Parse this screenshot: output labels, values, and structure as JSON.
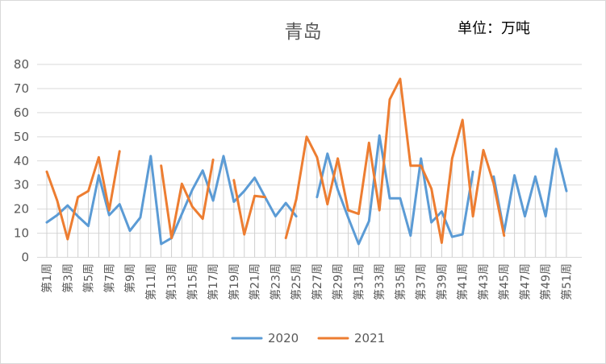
{
  "chart_data": {
    "type": "line",
    "title": "青岛",
    "unit": "单位：万吨",
    "ylim": [
      0,
      80
    ],
    "yticks": [
      0,
      10,
      20,
      30,
      40,
      50,
      60,
      70,
      80
    ],
    "xtick_labels": [
      "第1周",
      "第3周",
      "第5周",
      "第7周",
      "第9周",
      "第11周",
      "第13周",
      "第15周",
      "第17周",
      "第19周",
      "第21周",
      "第23周",
      "第25周",
      "第27周",
      "第29周",
      "第31周",
      "第33周",
      "第35周",
      "第37周",
      "第39周",
      "第41周",
      "第43周",
      "第45周",
      "第47周",
      "第49周",
      "第51周"
    ],
    "drop_lines": true,
    "legend_position": "bottom",
    "series": [
      {
        "name": "2020",
        "color": "#5b9bd5",
        "values": [
          14.5,
          17.5,
          21.5,
          17,
          13,
          34,
          17.5,
          22,
          11,
          16.5,
          42,
          5.5,
          8,
          18,
          28,
          36,
          23.5,
          42,
          23,
          27.5,
          33,
          25,
          17,
          22.5,
          17,
          null,
          25,
          43,
          28,
          16.5,
          5.5,
          15,
          50.5,
          24.5,
          24.5,
          9,
          41,
          14.5,
          19,
          8.5,
          9.5,
          35.5,
          null,
          33.5,
          10.5,
          34,
          17,
          33.5,
          17,
          45,
          27.5
        ]
      },
      {
        "name": "2021",
        "color": "#ed7d31",
        "values": [
          35.5,
          23.5,
          7.5,
          25,
          27.5,
          41.5,
          19.5,
          44,
          null,
          null,
          null,
          38,
          8,
          30.5,
          21,
          16,
          40.5,
          null,
          32,
          9.5,
          25.5,
          25,
          null,
          8,
          24,
          50,
          41.5,
          22,
          41,
          19.5,
          18,
          47.5,
          19.5,
          65.5,
          74,
          38,
          38,
          28.5,
          6,
          41,
          57,
          17,
          44.5,
          30.5,
          9
        ]
      }
    ]
  }
}
